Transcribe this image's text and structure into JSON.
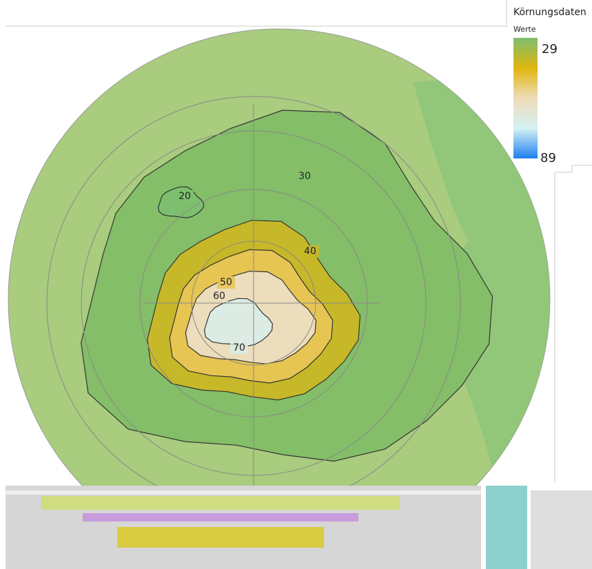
{
  "chart_data": {
    "type": "contour",
    "title": "Körnungsdaten",
    "colorbar": {
      "label": "Werte",
      "min": 29,
      "max": 89,
      "colors": [
        "#7dbf6e",
        "#e0b60f",
        "#eedbb8",
        "#d5f2f4",
        "#1e7ff0"
      ]
    },
    "levels": [
      20,
      30,
      40,
      50,
      60,
      70
    ]
  }
}
